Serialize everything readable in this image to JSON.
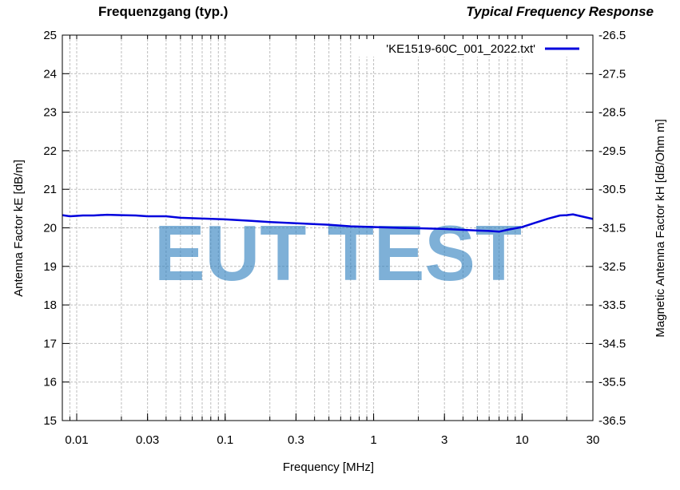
{
  "header": {
    "title_left": "Frequenzgang (typ.)",
    "title_right": "Typical Frequency Response"
  },
  "watermark": "EUT TEST",
  "chart_data": {
    "type": "line",
    "x_scale": "log",
    "xlabel": "Frequency [MHz]",
    "ylabel": "Antenna Factor kE [dB/m]",
    "y2label": "Magnetic Antenna Factor kH [dB/Ohm m]",
    "xlim": [
      0.008,
      30
    ],
    "ylim": [
      15,
      25
    ],
    "y2lim": [
      -36.5,
      -26.5
    ],
    "x_ticks": [
      {
        "value": 0.01,
        "label": "0.01"
      },
      {
        "value": 0.03,
        "label": "0.03"
      },
      {
        "value": 0.1,
        "label": "0.1"
      },
      {
        "value": 0.3,
        "label": "0.3"
      },
      {
        "value": 1,
        "label": "1"
      },
      {
        "value": 3,
        "label": "3"
      },
      {
        "value": 10,
        "label": "10"
      },
      {
        "value": 30,
        "label": "30"
      }
    ],
    "y_ticks": [
      "15",
      "16",
      "17",
      "18",
      "19",
      "20",
      "21",
      "22",
      "23",
      "24",
      "25"
    ],
    "y2_ticks": [
      "-36.5",
      "-35.5",
      "-34.5",
      "-33.5",
      "-32.5",
      "-31.5",
      "-30.5",
      "-29.5",
      "-28.5",
      "-27.5",
      "-26.5"
    ],
    "grid": true,
    "legend_position": "top-right",
    "series_color": "#0000dd",
    "series": [
      {
        "name": "'KE1519-60C_001_2022.txt'",
        "x": [
          0.008,
          0.009,
          0.011,
          0.013,
          0.016,
          0.02,
          0.025,
          0.03,
          0.04,
          0.05,
          0.07,
          0.1,
          0.15,
          0.2,
          0.3,
          0.5,
          0.7,
          1,
          1.5,
          2,
          3,
          5,
          6,
          7,
          8,
          10,
          12,
          15,
          18,
          20,
          22,
          25,
          30
        ],
        "values": [
          20.33,
          20.3,
          20.32,
          20.32,
          20.34,
          20.33,
          20.32,
          20.3,
          20.3,
          20.26,
          20.24,
          20.22,
          20.18,
          20.15,
          20.12,
          20.08,
          20.04,
          20.02,
          20.0,
          19.99,
          19.97,
          19.93,
          19.92,
          19.9,
          19.95,
          20.02,
          20.12,
          20.24,
          20.32,
          20.33,
          20.35,
          20.3,
          20.23
        ]
      }
    ]
  }
}
